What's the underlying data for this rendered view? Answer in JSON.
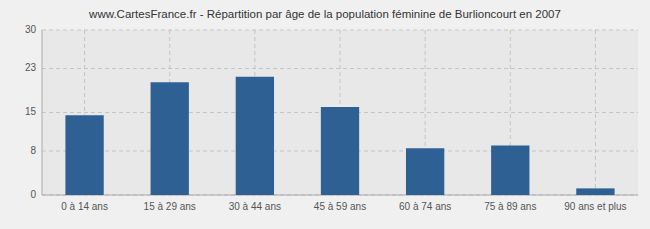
{
  "chart_data": {
    "type": "bar",
    "title": "www.CartesFrance.fr - Répartition par âge de la population féminine de Burlioncourt en 2007",
    "categories": [
      "0 à 14 ans",
      "15 à 29 ans",
      "30 à 44 ans",
      "45 à 59 ans",
      "60 à 74 ans",
      "75 à 89 ans",
      "90 ans et plus"
    ],
    "values": [
      14.5,
      20.5,
      21.5,
      16.0,
      8.5,
      9.0,
      1.2
    ],
    "color": "#2e6094",
    "ylim": [
      0,
      30
    ],
    "yticks": [
      0,
      8,
      15,
      23,
      30
    ],
    "grid": true
  }
}
